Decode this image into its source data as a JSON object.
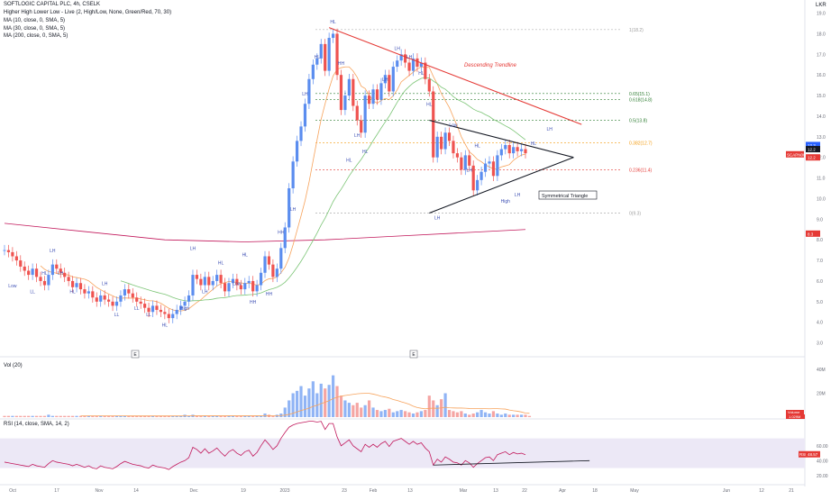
{
  "header": {
    "symbol_line": "SOFTLOGIC CAPITAL PLC, 4h, CSELK",
    "indicators": [
      "Higher High Lower Low - Live (2, High/Low, None, Green/Red, 70, 30)",
      "MA (10, close, 0, SMA, 5)",
      "MA (30, close, 0, SMA, 5)",
      "MA (200, close, 0, SMA, 5)"
    ],
    "currency": "LKR"
  },
  "colors": {
    "up": "#5b8def",
    "down": "#ef5350",
    "ma10": "#f7a35c",
    "ma30": "#7cc576",
    "ma200": "#c2185b",
    "trend": "#e53935",
    "fib_green": "#2e7d32",
    "fib_orange": "#f39c12",
    "fib_red": "#e53935",
    "fib_gray": "#9e9e9e",
    "rsi": "#c2185b",
    "band": "#ece8f6"
  },
  "chart_data": [
    {
      "type": "candlestick",
      "pane": "price",
      "ylim": [
        2.5,
        19.2
      ],
      "y_ticks": [
        "3.0",
        "4.0",
        "5.0",
        "6.0",
        "7.0",
        "8.0",
        "9.0",
        "10.0",
        "11.0",
        "12.0",
        "13.0",
        "14.0",
        "15.0",
        "16.0",
        "17.0",
        "18.0",
        "19.0"
      ],
      "x_tick_labels": [
        "Oct",
        "17",
        "Nov",
        "14",
        "Dec",
        "19",
        "2023",
        "23",
        "Feb",
        "13",
        "Mar",
        "13",
        "22",
        "Apr",
        "18",
        "May",
        "Jun",
        "12",
        "21"
      ],
      "closes": [
        7.5,
        7.4,
        7.2,
        7.0,
        6.7,
        6.5,
        6.3,
        6.6,
        6.2,
        6.0,
        5.8,
        6.3,
        6.8,
        6.6,
        6.4,
        6.2,
        6.0,
        5.7,
        5.9,
        5.6,
        5.4,
        5.5,
        5.2,
        5.0,
        5.3,
        5.1,
        5.0,
        4.8,
        5.0,
        5.3,
        5.6,
        5.4,
        5.2,
        5.0,
        4.9,
        4.7,
        4.5,
        4.8,
        4.6,
        4.5,
        4.4,
        4.2,
        4.4,
        4.6,
        4.8,
        5.0,
        5.3,
        6.3,
        6.1,
        5.8,
        6.2,
        5.8,
        6.0,
        6.3,
        5.9,
        5.5,
        5.9,
        6.1,
        5.8,
        5.6,
        5.9,
        6.0,
        5.5,
        5.8,
        6.4,
        7.2,
        6.8,
        6.2,
        6.6,
        7.6,
        8.6,
        10.5,
        11.8,
        12.8,
        13.5,
        14.6,
        15.8,
        16.5,
        16.8,
        17.5,
        16.2,
        17.8,
        18.0,
        16.0,
        14.3,
        15.0,
        15.8,
        14.5,
        13.8,
        13.2,
        15.0,
        14.6,
        15.3,
        14.8,
        15.6,
        16.0,
        15.2,
        16.4,
        16.7,
        17.0,
        16.6,
        16.2,
        16.8,
        16.4,
        16.6,
        15.8,
        15.2,
        12.0,
        13.0,
        12.4,
        13.2,
        12.8,
        12.2,
        12.0,
        11.4,
        12.1,
        11.6,
        10.4,
        10.9,
        11.3,
        11.7,
        11.8,
        11.1,
        12.1,
        12.4,
        12.6,
        12.2,
        12.5,
        12.3,
        12.4,
        12.2
      ],
      "ma10_start": 10,
      "ma30_start": 30,
      "ma200": {
        "x_index": [
          0,
          20,
          40,
          60,
          80,
          100,
          130
        ],
        "values": [
          8.8,
          8.4,
          8.0,
          7.9,
          8.0,
          8.2,
          8.5
        ]
      },
      "trendlines": [
        {
          "name": "Descending Trendline",
          "from": [
            81,
            18.3
          ],
          "to": [
            144,
            13.6
          ]
        },
        {
          "name": "Symmetrical Triangle upper",
          "from": [
            106,
            13.8
          ],
          "to": [
            142,
            12.0
          ]
        },
        {
          "name": "Symmetrical Triangle lower",
          "from": [
            106,
            9.3
          ],
          "to": [
            142,
            12.0
          ]
        }
      ],
      "fib_levels": [
        {
          "level": "1",
          "price": 18.2,
          "label": "1(18.2)"
        },
        {
          "level": "0.65",
          "price": 15.1,
          "label": "0.65(15.1)"
        },
        {
          "level": "0.618",
          "price": 14.8,
          "label": "0.618(14.8)"
        },
        {
          "level": "0.5",
          "price": 13.8,
          "label": "0.5(13.8)"
        },
        {
          "level": "0.382",
          "price": 12.7,
          "label": "0.382(12.7)"
        },
        {
          "level": "0.236",
          "price": 11.4,
          "label": "0.236(11.4)"
        },
        {
          "level": "0",
          "price": 9.3,
          "label": "0(9.3)"
        }
      ],
      "annotations": [
        "Low",
        "LL",
        "HL",
        "LH",
        "LH",
        "HL",
        "LH",
        "LL",
        "LL",
        "LL",
        "HL",
        "High",
        "LH",
        "LH",
        "HL",
        "Low",
        "HL",
        "HH",
        "HH",
        "HH",
        "LH",
        "LH",
        "HL",
        "HL",
        "HH",
        "HL",
        "LH",
        "HL",
        "LH",
        "LH",
        "LH",
        "HL",
        "HL",
        "LH",
        "Low",
        "LH",
        "HL",
        "High",
        "LH",
        "HL",
        "LH"
      ],
      "text_annotations": [
        "Descending Trendline",
        "Symmetrical Triangle"
      ],
      "price_tags": [
        {
          "label": "12.3",
          "color": "#2962ff"
        },
        {
          "label": "12.2",
          "color": "#131722"
        },
        {
          "label": "SCAPN0000",
          "color": "#e53935"
        },
        {
          "label": "12.2",
          "color": "#e53935"
        },
        {
          "label": "8.3",
          "color": "#e53935"
        }
      ],
      "event_marks": [
        "E",
        "E"
      ]
    },
    {
      "type": "bar",
      "pane": "volume",
      "title": "Vol (20)",
      "y_ticks": [
        "40M",
        "20M"
      ],
      "values_m": [
        1,
        1,
        1,
        1,
        1,
        1,
        1,
        1,
        1,
        1,
        1,
        2,
        1,
        1,
        1,
        1,
        1,
        1,
        1,
        1,
        1,
        1,
        1,
        1,
        1,
        1,
        1,
        1,
        1,
        1,
        1,
        1,
        1,
        1,
        1,
        1,
        1,
        1,
        1,
        1,
        1,
        1,
        1,
        1,
        1,
        2,
        1,
        2,
        1,
        1,
        1,
        1,
        1,
        1,
        1,
        1,
        1,
        1,
        1,
        1,
        1,
        1,
        1,
        1,
        1,
        3,
        2,
        1,
        2,
        3,
        8,
        14,
        20,
        22,
        26,
        18,
        24,
        30,
        20,
        28,
        24,
        27,
        35,
        26,
        18,
        14,
        12,
        10,
        12,
        8,
        10,
        14,
        8,
        6,
        5,
        6,
        7,
        4,
        5,
        6,
        5,
        4,
        3,
        4,
        5,
        6,
        18,
        14,
        10,
        15,
        20,
        6,
        5,
        4,
        5,
        3,
        2,
        3,
        4,
        6,
        4,
        3,
        5,
        3,
        2,
        3,
        2,
        2,
        2,
        2,
        2,
        1
      ],
      "values_up": [
        false,
        false,
        true,
        false,
        false,
        false,
        false,
        true,
        false,
        false,
        false,
        true,
        true,
        false,
        false,
        false,
        false,
        false,
        true,
        false,
        false,
        true,
        false,
        false,
        true,
        false,
        false,
        false,
        true,
        true,
        true,
        false,
        false,
        false,
        false,
        false,
        false,
        true,
        false,
        false,
        false,
        false,
        true,
        true,
        true,
        true,
        true,
        true,
        false,
        false,
        true,
        false,
        true,
        true,
        false,
        false,
        true,
        true,
        false,
        false,
        true,
        true,
        false,
        true,
        true,
        true,
        false,
        false,
        true,
        true,
        true,
        true,
        true,
        true,
        true,
        true,
        true,
        true,
        true,
        true,
        false,
        true,
        true,
        false,
        false,
        true,
        true,
        false,
        false,
        false,
        true,
        false,
        true,
        false,
        true,
        true,
        false,
        true,
        true,
        true,
        false,
        false,
        true,
        false,
        true,
        false,
        false,
        false,
        true,
        false,
        true,
        false,
        false,
        false,
        false,
        true,
        false,
        false,
        true,
        true,
        true,
        true,
        false,
        true,
        true,
        true,
        false,
        true,
        false,
        true,
        false
      ],
      "tags": [
        {
          "label": "Volume",
          "color": "#e53935"
        },
        {
          "label": "1.029M",
          "color": "#e53935"
        }
      ]
    },
    {
      "type": "line",
      "pane": "rsi",
      "title": "RSI (14, close, SMA, 14, 2)",
      "y_ticks": [
        "60.00",
        "40.00",
        "20.00"
      ],
      "band": [
        30,
        70
      ],
      "values": [
        38,
        37,
        36,
        35,
        34,
        33,
        32,
        35,
        33,
        32,
        31,
        36,
        40,
        38,
        37,
        36,
        35,
        33,
        35,
        33,
        31,
        33,
        30,
        29,
        33,
        31,
        30,
        29,
        32,
        36,
        39,
        37,
        35,
        34,
        33,
        31,
        30,
        34,
        32,
        31,
        30,
        28,
        32,
        35,
        38,
        40,
        44,
        58,
        55,
        50,
        56,
        50,
        53,
        57,
        51,
        46,
        52,
        55,
        50,
        47,
        52,
        54,
        46,
        51,
        60,
        68,
        62,
        55,
        60,
        70,
        78,
        85,
        88,
        90,
        91,
        92,
        93,
        93,
        92,
        93,
        82,
        90,
        90,
        72,
        60,
        64,
        68,
        60,
        56,
        52,
        62,
        58,
        62,
        58,
        63,
        66,
        59,
        66,
        68,
        70,
        66,
        62,
        66,
        62,
        64,
        57,
        52,
        34,
        42,
        38,
        45,
        42,
        38,
        37,
        34,
        40,
        37,
        31,
        36,
        40,
        44,
        45,
        40,
        48,
        50,
        52,
        48,
        51,
        49,
        50,
        48
      ],
      "trendline": {
        "from": [
          107,
          34
        ],
        "to": [
          146,
          40
        ]
      },
      "tags": [
        {
          "label": "RSI",
          "color": "#e53935"
        },
        {
          "label": "48.57",
          "color": "#e53935"
        }
      ]
    }
  ]
}
